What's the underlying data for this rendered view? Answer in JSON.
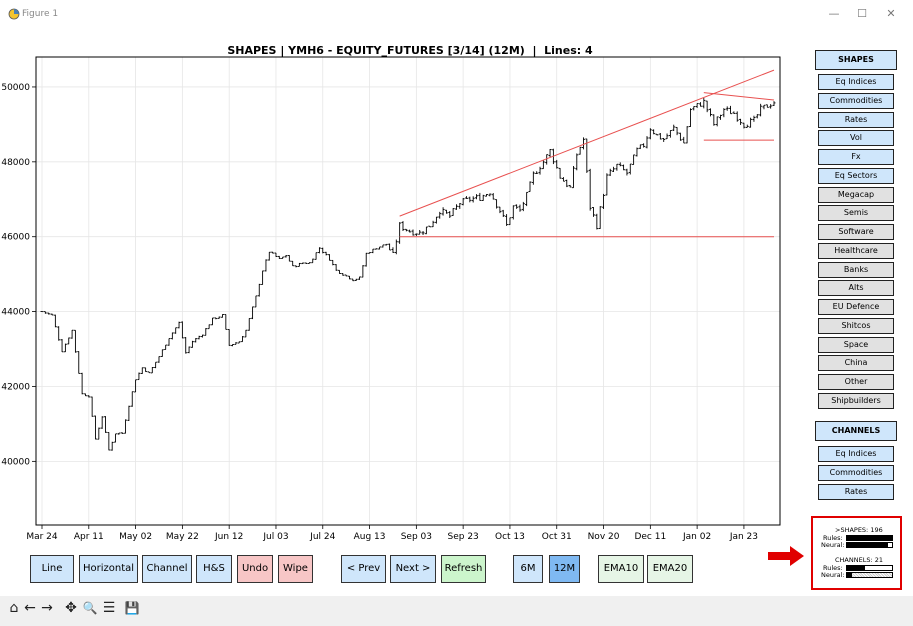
{
  "window": {
    "title": "Figure 1",
    "controls": {
      "minimize": "—",
      "maximize": "☐",
      "close": "✕"
    }
  },
  "chart_data": {
    "type": "ohlc",
    "title": "SHAPES | YMH6 - EQUITY_FUTURES [3/14] (12M)  |  Lines: 4",
    "xlabel": "",
    "ylabel": "",
    "ylim": [
      38300,
      50800
    ],
    "grid": true,
    "x_tick_labels": [
      "Mar 24",
      "Apr 11",
      "May 02",
      "May 22",
      "Jun 12",
      "Jul 03",
      "Jul 24",
      "Aug 13",
      "Sep 03",
      "Sep 23",
      "Oct 13",
      "Oct 31",
      "Nov 20",
      "Dec 11",
      "Jan 02",
      "Jan 23"
    ],
    "x_tick_index": [
      0,
      14,
      28,
      42,
      56,
      70,
      84,
      98,
      112,
      126,
      140,
      154,
      168,
      182,
      196,
      210
    ],
    "y_tick_values": [
      40000,
      42000,
      44000,
      46000,
      48000,
      50000
    ],
    "y_tick_labels": [
      "40000",
      "42000",
      "44000",
      "46000",
      "48000",
      "50000"
    ],
    "bar_count": 220,
    "anchors": [
      [
        0,
        44000
      ],
      [
        3,
        43900
      ],
      [
        6,
        42950
      ],
      [
        9,
        43500
      ],
      [
        12,
        41800
      ],
      [
        14,
        41750
      ],
      [
        16,
        40600
      ],
      [
        18,
        41200
      ],
      [
        20,
        40300
      ],
      [
        22,
        40750
      ],
      [
        24,
        40750
      ],
      [
        26,
        41500
      ],
      [
        28,
        42200
      ],
      [
        30,
        42500
      ],
      [
        32,
        42350
      ],
      [
        35,
        42800
      ],
      [
        38,
        43300
      ],
      [
        41,
        43700
      ],
      [
        43,
        42900
      ],
      [
        45,
        43200
      ],
      [
        48,
        43400
      ],
      [
        51,
        43800
      ],
      [
        54,
        43900
      ],
      [
        56,
        43100
      ],
      [
        59,
        43200
      ],
      [
        61,
        43500
      ],
      [
        64,
        44400
      ],
      [
        66,
        45100
      ],
      [
        68,
        45600
      ],
      [
        71,
        45400
      ],
      [
        73,
        45500
      ],
      [
        75,
        45200
      ],
      [
        78,
        45300
      ],
      [
        80,
        45300
      ],
      [
        83,
        45700
      ],
      [
        86,
        45400
      ],
      [
        88,
        45100
      ],
      [
        91,
        44950
      ],
      [
        93,
        44850
      ],
      [
        95,
        44900
      ],
      [
        97,
        45550
      ],
      [
        100,
        45700
      ],
      [
        103,
        45800
      ],
      [
        105,
        45500
      ],
      [
        107,
        46300
      ],
      [
        110,
        46150
      ],
      [
        113,
        46100
      ],
      [
        116,
        46300
      ],
      [
        119,
        46700
      ],
      [
        122,
        46550
      ],
      [
        125,
        46900
      ],
      [
        128,
        47000
      ],
      [
        131,
        47050
      ],
      [
        134,
        47200
      ],
      [
        137,
        46700
      ],
      [
        139,
        46300
      ],
      [
        141,
        46800
      ],
      [
        143,
        46700
      ],
      [
        145,
        47100
      ],
      [
        147,
        47650
      ],
      [
        150,
        48000
      ],
      [
        152,
        48300
      ],
      [
        155,
        47600
      ],
      [
        158,
        47300
      ],
      [
        160,
        48200
      ],
      [
        162,
        48600
      ],
      [
        164,
        46800
      ],
      [
        166,
        46300
      ],
      [
        169,
        47600
      ],
      [
        172,
        47900
      ],
      [
        175,
        47700
      ],
      [
        178,
        48300
      ],
      [
        180,
        48450
      ],
      [
        182,
        48900
      ],
      [
        184,
        48700
      ],
      [
        186,
        48600
      ],
      [
        189,
        48900
      ],
      [
        192,
        48500
      ],
      [
        194,
        49400
      ],
      [
        196,
        49500
      ],
      [
        198,
        49600
      ],
      [
        201,
        49000
      ],
      [
        204,
        49400
      ],
      [
        207,
        49300
      ],
      [
        210,
        49000
      ],
      [
        213,
        49100
      ],
      [
        215,
        49400
      ],
      [
        219,
        49600
      ]
    ],
    "lines": [
      {
        "type": "trend",
        "from": [
          107,
          46550
        ],
        "to": [
          219,
          50450
        ],
        "color": "#e8504f"
      },
      {
        "type": "horizontal",
        "from": [
          107,
          46000
        ],
        "to": [
          219,
          46000
        ],
        "color": "#e8504f"
      },
      {
        "type": "horizontal",
        "from": [
          198,
          48580
        ],
        "to": [
          219,
          48580
        ],
        "color": "#e8504f"
      },
      {
        "type": "trend",
        "from": [
          198,
          49850
        ],
        "to": [
          219,
          49650
        ],
        "color": "#e8504f"
      }
    ]
  },
  "shapes_panel": {
    "header": "SHAPES",
    "items": [
      {
        "label": "Eq Indices",
        "color": "blue"
      },
      {
        "label": "Commodities",
        "color": "blue"
      },
      {
        "label": "Rates",
        "color": "blue"
      },
      {
        "label": "Vol",
        "color": "blue"
      },
      {
        "label": "Fx",
        "color": "blue"
      },
      {
        "label": "Eq Sectors",
        "color": "blue"
      },
      {
        "label": "Megacap",
        "color": "grey"
      },
      {
        "label": "Semis",
        "color": "grey"
      },
      {
        "label": "Software",
        "color": "grey"
      },
      {
        "label": "Healthcare",
        "color": "grey"
      },
      {
        "label": "Banks",
        "color": "grey"
      },
      {
        "label": "Alts",
        "color": "grey"
      },
      {
        "label": "EU Defence",
        "color": "grey"
      },
      {
        "label": "Shitcos",
        "color": "grey"
      },
      {
        "label": "Space",
        "color": "grey"
      },
      {
        "label": "China",
        "color": "grey"
      },
      {
        "label": "Other",
        "color": "grey"
      },
      {
        "label": "Shipbuilders",
        "color": "grey"
      }
    ]
  },
  "channels_panel": {
    "header": "CHANNELS",
    "items": [
      {
        "label": "Eq Indices",
        "color": "blue"
      },
      {
        "label": "Commodities",
        "color": "blue"
      },
      {
        "label": "Rates",
        "color": "blue"
      }
    ]
  },
  "stats": {
    "shapes_line": ">SHAPES: 196",
    "rules_label": "Rules:",
    "neural_label": "Neural:",
    "shapes_rules_fill": 1.0,
    "shapes_neural_fill": 0.9,
    "channels_line": "CHANNELS: 21",
    "channels_rules_fill": 0.4,
    "channels_neural_fill": 0.1
  },
  "bottom_buttons": [
    {
      "label": "Line",
      "style": "blue"
    },
    {
      "label": "Horizontal",
      "style": "blue"
    },
    {
      "label": "Channel",
      "style": "blue"
    },
    {
      "label": "H&S",
      "style": "blue"
    },
    {
      "label": "Undo",
      "style": "red"
    },
    {
      "label": "Wipe",
      "style": "red"
    },
    {
      "label": "< Prev",
      "style": "blue"
    },
    {
      "label": "Next >",
      "style": "blue"
    },
    {
      "label": "Refresh",
      "style": "green"
    },
    {
      "label": "6M",
      "style": "blue"
    },
    {
      "label": "12M",
      "style": "active"
    },
    {
      "label": "EMA10",
      "style": "lightgreen"
    },
    {
      "label": "EMA20",
      "style": "lightgreen"
    }
  ],
  "toolbar": {
    "home": "⌂",
    "back": "←",
    "forward": "→",
    "pan": "✥",
    "zoom": "🔍",
    "configure": "☰",
    "save": "💾"
  }
}
